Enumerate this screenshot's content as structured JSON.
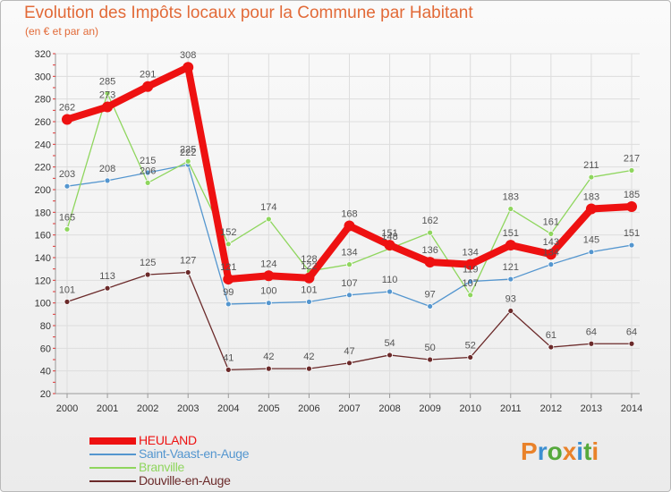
{
  "title": "Evolution des Impôts locaux pour la Commune par Habitant",
  "subtitle": "(en € et par an)",
  "colors": {
    "title": "#e26a38",
    "axis_text": "#333333",
    "grid": "#dddddd",
    "label": "#555555"
  },
  "logo": {
    "text": "Proxiti",
    "letters": [
      "P",
      "r",
      "o",
      "x",
      "i",
      "t",
      "i"
    ],
    "letter_colors": [
      "#e9822a",
      "#3c8fd1",
      "#56a93c",
      "#e9822a",
      "#3c8fd1",
      "#56a93c",
      "#e9822a"
    ]
  },
  "chart_data": {
    "type": "line",
    "title": "Evolution des Impôts locaux pour la Commune par Habitant",
    "subtitle": "(en € et par an)",
    "xlabel": "",
    "ylabel": "",
    "x": [
      "2000",
      "2001",
      "2002",
      "2003",
      "2004",
      "2005",
      "2006",
      "2007",
      "2008",
      "2009",
      "2010",
      "2011",
      "2012",
      "2013",
      "2014"
    ],
    "ylim": [
      20,
      320
    ],
    "yticks": [
      20,
      40,
      60,
      80,
      100,
      120,
      140,
      160,
      180,
      200,
      220,
      240,
      260,
      280,
      300,
      320
    ],
    "grid": true,
    "legend_position": "bottom-left",
    "series": [
      {
        "name": "HEULAND",
        "color": "#ee1111",
        "style": "thick",
        "values": [
          262,
          273,
          291,
          308,
          121,
          124,
          122,
          168,
          151,
          136,
          134,
          151,
          143,
          183,
          185
        ],
        "labels": [
          "262",
          "273",
          "291",
          "308",
          "121",
          "124",
          "122",
          "168",
          "151",
          "136",
          "134",
          "151",
          "143",
          "183",
          "185"
        ]
      },
      {
        "name": "Saint-Vaast-en-Auge",
        "color": "#5496cf",
        "style": "thin",
        "values": [
          203,
          208,
          215,
          222,
          99,
          100,
          101,
          107,
          110,
          97,
          119,
          121,
          134,
          145,
          151
        ],
        "labels": [
          "203",
          "208",
          "215",
          "222",
          "99",
          "100",
          "101",
          "107",
          "110",
          "97",
          "119",
          "121",
          "134",
          "145",
          "151"
        ]
      },
      {
        "name": "Branville",
        "color": "#8fd65e",
        "style": "thin",
        "values": [
          165,
          285,
          206,
          225,
          152,
          174,
          128,
          134,
          148,
          162,
          107,
          183,
          161,
          211,
          217
        ],
        "labels": [
          "165",
          "285",
          "206",
          "225",
          "152",
          "174",
          "128",
          "134",
          "148",
          "162",
          "107",
          "183",
          "161",
          "211",
          "217"
        ]
      },
      {
        "name": "Douville-en-Auge",
        "color": "#6b2a2a",
        "style": "thin",
        "values": [
          101,
          113,
          125,
          127,
          41,
          42,
          42,
          47,
          54,
          50,
          52,
          93,
          61,
          64,
          64
        ],
        "labels": [
          "101",
          "113",
          "125",
          "127",
          "41",
          "42",
          "42",
          "47",
          "54",
          "50",
          "52",
          "93",
          "61",
          "64",
          "64"
        ]
      }
    ]
  }
}
